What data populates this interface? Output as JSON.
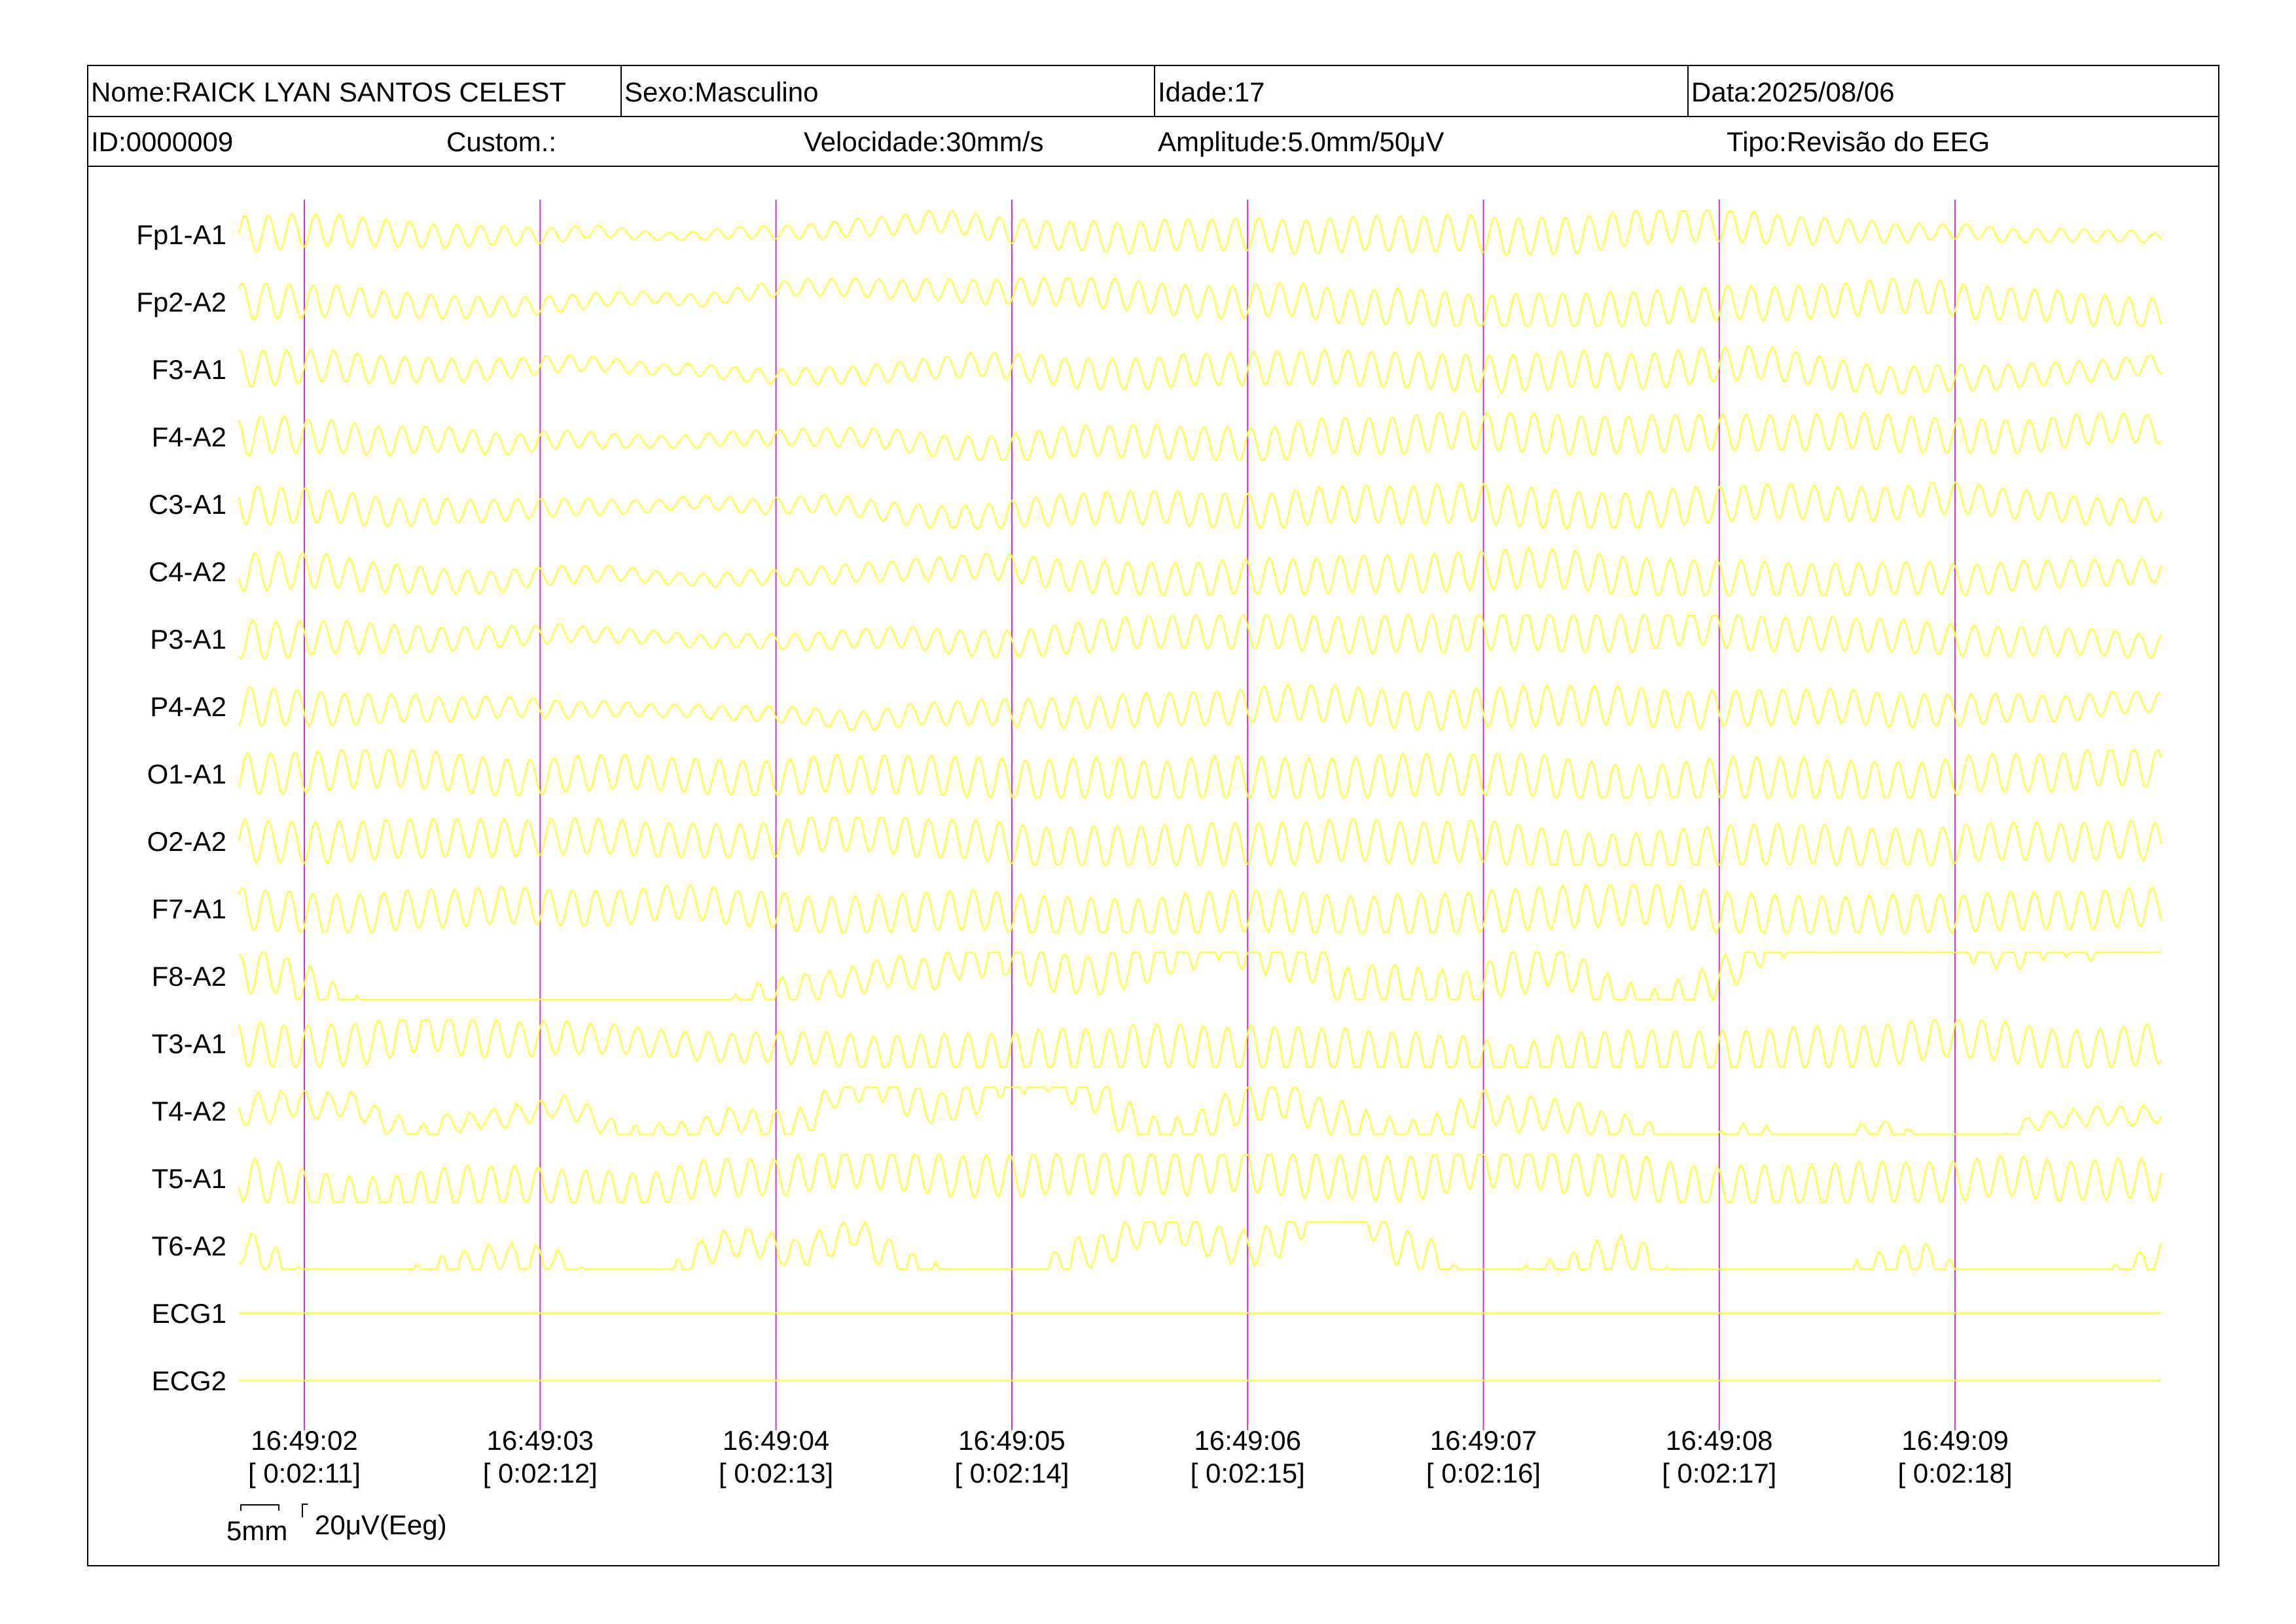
{
  "header": {
    "name": "Nome:RAICK LYAN SANTOS CELEST",
    "sex": "Sexo:Masculino",
    "age": "Idade:17",
    "date": "Data:2025/08/06",
    "id": "ID:0000009",
    "custom": "Custom.:",
    "speed": "Velocidade:30mm/s",
    "amplitude": "Amplitude:5.0mm/50μV",
    "type": "Tipo:Revisão do EEG"
  },
  "scale": {
    "time_label": "5mm",
    "amp_label": "20μV(Eeg)"
  },
  "colors": {
    "trace": "#ffff33",
    "marker": "#cc33cc",
    "background": "#ffffff",
    "text": "#000000"
  },
  "chart_data": {
    "type": "line",
    "title": "",
    "xlabel": "",
    "ylabel": "",
    "grid": false,
    "x_range": [
      "16:49:01.7",
      "16:49:09.9"
    ],
    "x_ticks": [
      "16:49:02",
      "16:49:03",
      "16:49:04",
      "16:49:05",
      "16:49:06",
      "16:49:07",
      "16:49:08",
      "16:49:09"
    ],
    "x_ticks_elapsed": [
      "[ 0:02:11]",
      "[ 0:02:12]",
      "[ 0:02:13]",
      "[ 0:02:14]",
      "[ 0:02:15]",
      "[ 0:02:16]",
      "[ 0:02:17]",
      "[ 0:02:18]"
    ],
    "series": [
      {
        "name": "Fp1-A1",
        "freq_hz": 10,
        "amp": 0.8,
        "noise": 0.1,
        "env": [
          1.0,
          0.6,
          0.2,
          0.5,
          0.8,
          0.9,
          1.0,
          0.9,
          0.4,
          0.3
        ]
      },
      {
        "name": "Fp2-A2",
        "freq_hz": 10,
        "amp": 0.8,
        "noise": 0.1,
        "env": [
          1.0,
          0.6,
          0.3,
          0.5,
          0.8,
          0.9,
          1.0,
          0.9,
          0.9,
          0.8
        ]
      },
      {
        "name": "F3-A1",
        "freq_hz": 10,
        "amp": 0.8,
        "noise": 0.1,
        "env": [
          1.0,
          0.6,
          0.3,
          0.5,
          0.8,
          0.9,
          1.0,
          0.9,
          0.7,
          0.5
        ]
      },
      {
        "name": "F4-A2",
        "freq_hz": 10,
        "amp": 0.85,
        "noise": 0.1,
        "env": [
          1.0,
          0.6,
          0.3,
          0.5,
          0.8,
          0.9,
          1.0,
          0.9,
          0.9,
          0.7
        ]
      },
      {
        "name": "C3-A1",
        "freq_hz": 10,
        "amp": 0.85,
        "noise": 0.1,
        "env": [
          1.0,
          0.6,
          0.3,
          0.5,
          0.8,
          0.9,
          1.0,
          0.9,
          0.8,
          0.6
        ]
      },
      {
        "name": "C4-A2",
        "freq_hz": 10,
        "amp": 0.85,
        "noise": 0.1,
        "env": [
          1.0,
          0.6,
          0.3,
          0.5,
          0.8,
          0.9,
          1.0,
          0.9,
          0.8,
          0.6
        ]
      },
      {
        "name": "P3-A1",
        "freq_hz": 10,
        "amp": 0.85,
        "noise": 0.1,
        "env": [
          1.0,
          0.6,
          0.3,
          0.5,
          0.8,
          0.9,
          1.0,
          0.9,
          0.8,
          0.6
        ]
      },
      {
        "name": "P4-A2",
        "freq_hz": 10,
        "amp": 0.85,
        "noise": 0.1,
        "env": [
          1.0,
          0.6,
          0.3,
          0.5,
          0.8,
          0.9,
          1.0,
          0.9,
          0.8,
          0.5
        ]
      },
      {
        "name": "O1-A1",
        "freq_hz": 10,
        "amp": 0.9,
        "noise": 0.1,
        "env": [
          1.0,
          0.9,
          0.8,
          0.9,
          1.0,
          1.0,
          1.0,
          1.0,
          0.9,
          0.9
        ]
      },
      {
        "name": "O2-A2",
        "freq_hz": 10,
        "amp": 0.9,
        "noise": 0.1,
        "env": [
          1.0,
          0.9,
          0.8,
          0.9,
          1.0,
          1.0,
          1.0,
          1.0,
          0.9,
          0.9
        ]
      },
      {
        "name": "F7-A1",
        "freq_hz": 10,
        "amp": 0.9,
        "noise": 0.1,
        "env": [
          1.0,
          0.9,
          0.8,
          0.9,
          1.0,
          1.0,
          1.0,
          1.0,
          0.9,
          0.9
        ]
      },
      {
        "name": "F8-A2",
        "freq_hz": 10,
        "amp": 0.9,
        "noise": 0.6,
        "env": [
          1.0,
          0.8,
          0.6,
          0.7,
          1.0,
          1.0,
          1.0,
          0.9,
          0.8,
          0.7
        ]
      },
      {
        "name": "T3-A1",
        "freq_hz": 10,
        "amp": 0.95,
        "noise": 0.15,
        "env": [
          1.0,
          0.9,
          0.6,
          0.8,
          1.0,
          1.0,
          1.0,
          1.0,
          0.9,
          0.9
        ]
      },
      {
        "name": "T4-A2",
        "freq_hz": 10,
        "amp": 0.8,
        "noise": 0.6,
        "env": [
          0.8,
          0.5,
          0.6,
          0.8,
          1.0,
          1.0,
          0.9,
          0.6,
          0.4,
          0.5
        ]
      },
      {
        "name": "T5-A1",
        "freq_hz": 10,
        "amp": 0.95,
        "noise": 0.15,
        "env": [
          1.0,
          0.9,
          0.8,
          0.9,
          1.0,
          1.0,
          1.0,
          1.0,
          0.9,
          0.9
        ]
      },
      {
        "name": "T6-A2",
        "freq_hz": 10,
        "amp": 0.8,
        "noise": 0.7,
        "env": [
          0.9,
          0.8,
          0.7,
          0.8,
          0.9,
          1.0,
          1.0,
          1.0,
          0.9,
          0.8
        ]
      },
      {
        "name": "ECG1",
        "freq_hz": 0,
        "amp": 0,
        "noise": 0,
        "env": [
          0
        ]
      },
      {
        "name": "ECG2",
        "freq_hz": 0,
        "amp": 0,
        "noise": 0,
        "env": [
          0
        ]
      }
    ]
  }
}
